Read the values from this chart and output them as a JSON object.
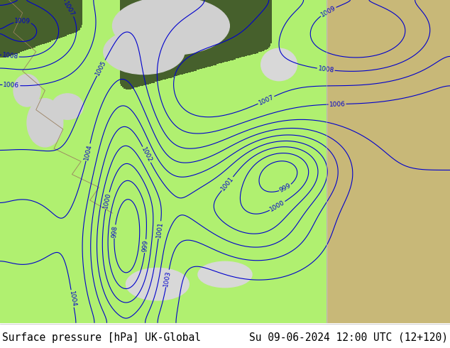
{
  "title_left": "Surface pressure [hPa] UK-Global",
  "title_right": "Su 09-06-2024 12:00 UTC (12+120)",
  "contour_color": "#0000cd",
  "green_fill": "#b0f070",
  "grey_bg": "#d0d0d0",
  "tan_land": "#c8b878",
  "coastline_color": "#a09060",
  "fig_width": 6.34,
  "fig_height": 4.9,
  "dpi": 100,
  "title_fontsize": 10.5,
  "model_boundary": 0.725
}
